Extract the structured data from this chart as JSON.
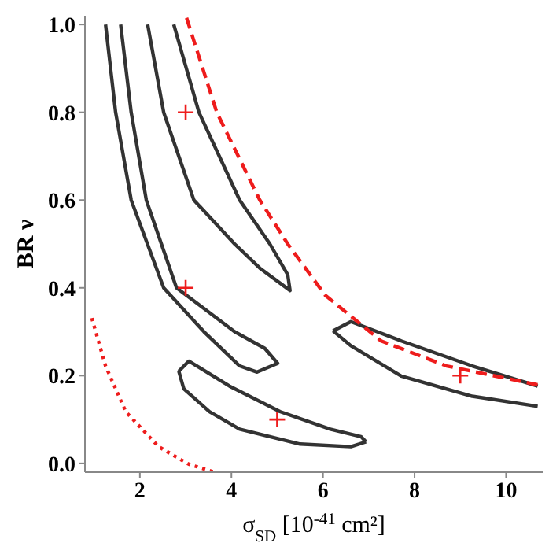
{
  "chart_data": {
    "type": "line",
    "xlabel": "σ$_{SD}$ [10$^{-41}$ cm²]",
    "ylabel": "BR ν",
    "xlim": [
      0.8,
      10.8
    ],
    "ylim": [
      -0.02,
      1.02
    ],
    "xticks": [
      2,
      4,
      6,
      8,
      10
    ],
    "yticks": [
      {
        "value": 0,
        "label": "0.0"
      },
      {
        "value": 0.2,
        "label": "0.2"
      },
      {
        "value": 0.4,
        "label": "0.4"
      },
      {
        "value": 0.6,
        "label": "0.6"
      },
      {
        "value": 0.8,
        "label": "0.8"
      },
      {
        "value": 1,
        "label": "1.0"
      }
    ],
    "grid": false,
    "legend": false,
    "series": [
      {
        "color": "#333333",
        "line_style": "solid",
        "x": [
          2.17,
          2.52,
          3.18,
          4.07,
          4.62,
          5.28,
          5.23,
          4.84,
          4.18,
          3.29,
          2.74
        ],
        "values": [
          1.0,
          0.8,
          0.6,
          0.5,
          0.445,
          0.394,
          0.43,
          0.5,
          0.6,
          0.8,
          1.0
        ]
      },
      {
        "color": "#333333",
        "line_style": "solid",
        "x": [
          1.25,
          1.47,
          1.81,
          2.52,
          3.4,
          4.18,
          4.56,
          5.01,
          4.73,
          4.07,
          2.8,
          2.14,
          1.81,
          1.58
        ],
        "values": [
          1.0,
          0.8,
          0.6,
          0.4,
          0.3,
          0.222,
          0.208,
          0.228,
          0.262,
          0.3,
          0.4,
          0.6,
          0.8,
          1.0
        ]
      },
      {
        "color": "#333333",
        "line_style": "solid",
        "x": [
          2.85,
          3.07,
          3.96,
          5.06,
          6.16,
          6.83,
          6.94
        ],
        "values": [
          0.21,
          0.233,
          0.176,
          0.118,
          0.078,
          0.061,
          0.049
        ]
      },
      {
        "color": "#333333",
        "line_style": "solid",
        "x": [
          2.85,
          2.96,
          3.52,
          4.18,
          5.5,
          6.61,
          6.94
        ],
        "values": [
          0.21,
          0.17,
          0.118,
          0.078,
          0.044,
          0.038,
          0.049
        ]
      },
      {
        "color": "#333333",
        "line_style": "solid",
        "x": [
          6.22,
          6.61,
          7.71,
          9.26,
          10.69
        ],
        "values": [
          0.302,
          0.323,
          0.279,
          0.222,
          0.176
        ]
      },
      {
        "color": "#333333",
        "line_style": "solid",
        "x": [
          6.22,
          6.61,
          7.71,
          9.26,
          10.69
        ],
        "values": [
          0.302,
          0.268,
          0.199,
          0.153,
          0.13
        ]
      },
      {
        "color": "#ee1c1c",
        "line_style": "dashed",
        "x": [
          3.02,
          3.68,
          4.62,
          5.23,
          6.05,
          7.27,
          8.7,
          10.69
        ],
        "values": [
          1.015,
          0.8,
          0.6,
          0.5,
          0.383,
          0.279,
          0.222,
          0.179
        ]
      },
      {
        "color": "#ee1c1c",
        "line_style": "dotted",
        "x": [
          0.95,
          1.25,
          1.69,
          2.41,
          3.07,
          3.63
        ],
        "values": [
          0.331,
          0.222,
          0.118,
          0.038,
          -0.002,
          -0.02
        ]
      },
      {
        "type": "scatter",
        "color": "#ee1c1c",
        "marker": "cross",
        "x": [
          3,
          3,
          5,
          9
        ],
        "values": [
          0.8,
          0.4,
          0.1,
          0.2
        ]
      }
    ]
  }
}
